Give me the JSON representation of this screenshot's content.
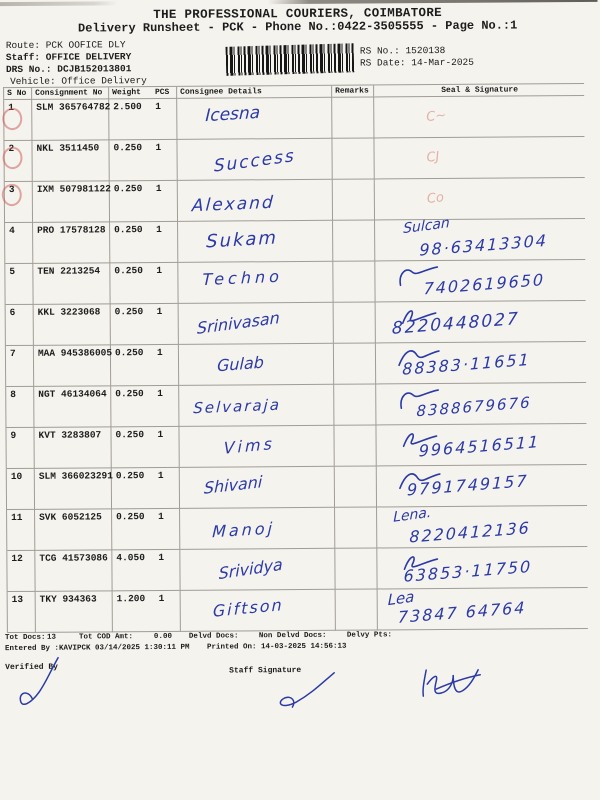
{
  "colors": {
    "handwriting_blue": "#2b3aa8",
    "check_red": "#c95550",
    "paper": "#f5f3ee",
    "grid_line": "#a09c96",
    "ink": "#1c1c1c"
  },
  "header": {
    "company": "THE PROFESSIONAL COURIERS, COIMBATORE",
    "subtitle": "Delivery Runsheet - PCK - Phone No.:0422-3505555 - Page No.:1",
    "route_line": "Route: PCK OOFICE DLY",
    "staff_line": "Staff: OFFICE DELIVERY",
    "drs_line": "DRS No.: DCJB152013801",
    "vehicle_line": "Vehicle: Office Delivery",
    "rs_no": "RS No.: 1520138",
    "rs_date": "RS Date: 14-Mar-2025",
    "barcode_icon": "code128-barcode"
  },
  "table": {
    "columns": [
      "S No",
      "Consignment No",
      "Weight",
      "PCS",
      "Consignee Details",
      "Remarks",
      "Seal & Signature"
    ],
    "rows": [
      {
        "sno": "1",
        "consignment": "SLM 365764782",
        "weight": "2.500",
        "pcs": "1",
        "consignee": "Icesna",
        "remarks": "",
        "phone": "",
        "seal_name": "",
        "seal_faint": "C~",
        "red_circle": true,
        "squiggle": false
      },
      {
        "sno": "2",
        "consignment": "NKL 3511450",
        "weight": "0.250",
        "pcs": "1",
        "consignee": "Success",
        "remarks": "",
        "phone": "",
        "seal_name": "",
        "seal_faint": "CJ",
        "red_circle": true,
        "squiggle": false
      },
      {
        "sno": "3",
        "consignment": "IXM 507981122",
        "weight": "0.250",
        "pcs": "1",
        "consignee": "Alexand",
        "remarks": "",
        "phone": "",
        "seal_name": "",
        "seal_faint": "Co",
        "red_circle": true,
        "squiggle": false
      },
      {
        "sno": "4",
        "consignment": "PRO 17578128",
        "weight": "0.250",
        "pcs": "1",
        "consignee": "Sukam",
        "remarks": "",
        "phone": "98·63413304",
        "seal_name": "Sulcan",
        "seal_faint": "",
        "red_circle": false,
        "squiggle": false
      },
      {
        "sno": "5",
        "consignment": "TEN 2213254",
        "weight": "0.250",
        "pcs": "1",
        "consignee": "Techno",
        "remarks": "",
        "phone": "7402619650",
        "seal_name": "",
        "seal_faint": "",
        "red_circle": false,
        "squiggle": true
      },
      {
        "sno": "6",
        "consignment": "KKL 3223068",
        "weight": "0.250",
        "pcs": "1",
        "consignee": "Srinivasan",
        "remarks": "",
        "phone": "8220448027",
        "seal_name": "",
        "seal_faint": "",
        "red_circle": false,
        "squiggle": true
      },
      {
        "sno": "7",
        "consignment": "MAA 945386005",
        "weight": "0.250",
        "pcs": "1",
        "consignee": "Gulab",
        "remarks": "",
        "phone": "88383·11651",
        "seal_name": "",
        "seal_faint": "",
        "red_circle": false,
        "squiggle": true
      },
      {
        "sno": "8",
        "consignment": "NGT 46134064",
        "weight": "0.250",
        "pcs": "1",
        "consignee": "Selvaraja",
        "remarks": "",
        "phone": "8388679676",
        "seal_name": "",
        "seal_faint": "",
        "red_circle": false,
        "squiggle": true
      },
      {
        "sno": "9",
        "consignment": "KVT 3283807",
        "weight": "0.250",
        "pcs": "1",
        "consignee": "Vims",
        "remarks": "",
        "phone": "9964516511",
        "seal_name": "",
        "seal_faint": "",
        "red_circle": false,
        "squiggle": true
      },
      {
        "sno": "10",
        "consignment": "SLM 366023291",
        "weight": "0.250",
        "pcs": "1",
        "consignee": "Shivani",
        "remarks": "",
        "phone": "9791749157",
        "seal_name": "",
        "seal_faint": "",
        "red_circle": false,
        "squiggle": true
      },
      {
        "sno": "11",
        "consignment": "SVK 6052125",
        "weight": "0.250",
        "pcs": "1",
        "consignee": "Manoj",
        "remarks": "",
        "phone": "8220412136",
        "seal_name": "Lena.",
        "seal_faint": "",
        "red_circle": false,
        "squiggle": false
      },
      {
        "sno": "12",
        "consignment": "TCG 41573086",
        "weight": "4.050",
        "pcs": "1",
        "consignee": "Srividya",
        "remarks": "",
        "phone": "63853·11750",
        "seal_name": "",
        "seal_faint": "",
        "red_circle": false,
        "squiggle": true
      },
      {
        "sno": "13",
        "consignment": "TKY 934363",
        "weight": "1.200",
        "pcs": "1",
        "consignee": "Giftson",
        "remarks": "",
        "phone": "73847 64764",
        "seal_name": "Lea",
        "seal_faint": "",
        "red_circle": false,
        "squiggle": false
      }
    ]
  },
  "footer": {
    "tot_docs_label": "Tot Docs:",
    "tot_docs": "13",
    "tot_cod_label": "Tot COD Amt:",
    "tot_cod": "0.00",
    "delvd_label": "Delvd Docs:",
    "non_delvd_label": "Non Delvd Docs:",
    "delvy_label": "Delvy Pts:",
    "entered_line": "Entered By :KAVIPCK 03/14/2025 1:30:11 PM",
    "printed_line": "Printed On: 14-03-2025 14:56:13",
    "verified_label": "Verified By",
    "staff_sig_label": "Staff Signature",
    "signature_icons": [
      "verified-by-signature",
      "staff-signature",
      "staff-initials-signature"
    ]
  }
}
